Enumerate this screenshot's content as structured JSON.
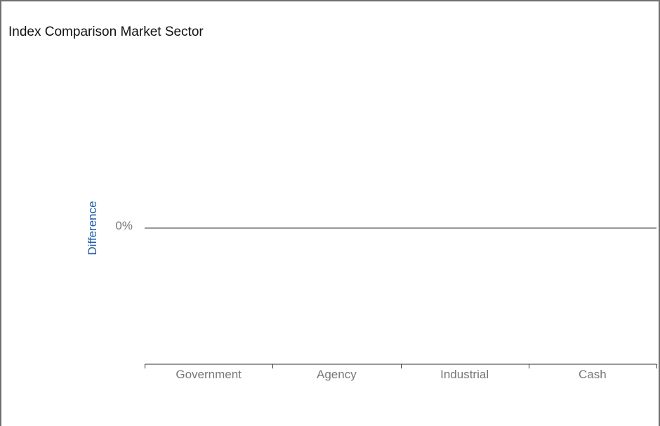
{
  "chart_data": {
    "type": "bar",
    "title": "Index Comparison Market Sector",
    "xlabel": "",
    "ylabel": "Difference",
    "categories": [
      "Government",
      "Agency",
      "Industrial",
      "Cash"
    ],
    "series": [
      {
        "values": [
          0,
          0,
          0,
          0
        ]
      }
    ],
    "y_ticks": [
      "0%"
    ],
    "ylim": [
      -1,
      1
    ],
    "grid": false,
    "legend": "none"
  },
  "colors": {
    "ylabel": "#1f5aa8",
    "tick_text": "#777777",
    "axis_line": "#333333",
    "border": "#6f6f6f"
  }
}
